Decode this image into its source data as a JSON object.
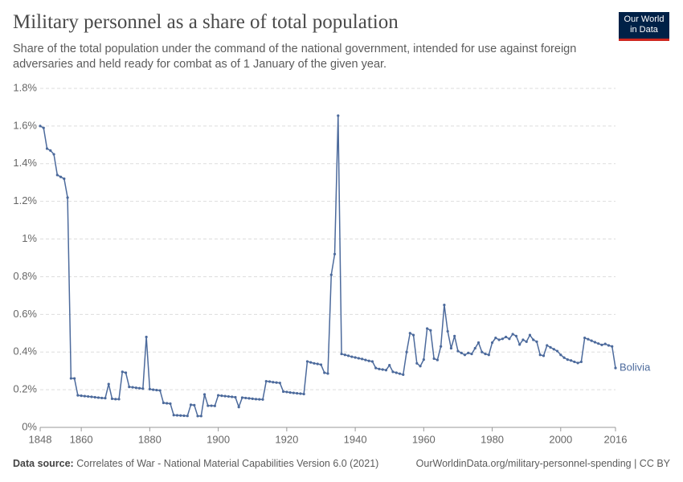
{
  "chart_data": {
    "type": "line",
    "title": "Military personnel as a share of total population",
    "subtitle": "Share of the total population under the command of the national government, intended for use against foreign adversaries and held ready for combat as of 1 January of the given year.",
    "logo": [
      "Our World",
      "in Data"
    ],
    "source_label": "Data source:",
    "source": "Correlates of War - National Material Capabilities Version 6.0 (2021)",
    "url": "OurWorldinData.org/military-personnel-spending | CC BY",
    "x": [
      1848,
      1849,
      1850,
      1851,
      1852,
      1853,
      1854,
      1855,
      1856,
      1857,
      1858,
      1859,
      1860,
      1861,
      1862,
      1863,
      1864,
      1865,
      1866,
      1867,
      1868,
      1869,
      1870,
      1871,
      1872,
      1873,
      1874,
      1875,
      1876,
      1877,
      1878,
      1879,
      1880,
      1881,
      1882,
      1883,
      1884,
      1885,
      1886,
      1887,
      1888,
      1889,
      1890,
      1891,
      1892,
      1893,
      1894,
      1895,
      1896,
      1897,
      1898,
      1899,
      1900,
      1901,
      1902,
      1903,
      1904,
      1905,
      1906,
      1907,
      1908,
      1909,
      1910,
      1911,
      1912,
      1913,
      1914,
      1915,
      1916,
      1917,
      1918,
      1919,
      1920,
      1921,
      1922,
      1923,
      1924,
      1925,
      1926,
      1927,
      1928,
      1929,
      1930,
      1931,
      1932,
      1933,
      1934,
      1935,
      1936,
      1937,
      1938,
      1939,
      1940,
      1941,
      1942,
      1943,
      1944,
      1945,
      1946,
      1947,
      1948,
      1949,
      1950,
      1951,
      1952,
      1953,
      1954,
      1955,
      1956,
      1957,
      1958,
      1959,
      1960,
      1961,
      1962,
      1963,
      1964,
      1965,
      1966,
      1967,
      1968,
      1969,
      1970,
      1971,
      1972,
      1973,
      1974,
      1975,
      1976,
      1977,
      1978,
      1979,
      1980,
      1981,
      1982,
      1983,
      1984,
      1985,
      1986,
      1987,
      1988,
      1989,
      1990,
      1991,
      1992,
      1993,
      1994,
      1995,
      1996,
      1997,
      1998,
      1999,
      2000,
      2001,
      2002,
      2003,
      2004,
      2005,
      2006,
      2007,
      2008,
      2009,
      2010,
      2011,
      2012,
      2013,
      2014,
      2015,
      2016
    ],
    "series": [
      {
        "name": "Bolivia",
        "color": "#4c6a9c",
        "values": [
          1.6,
          1.59,
          1.48,
          1.47,
          1.45,
          1.34,
          1.33,
          1.32,
          1.22,
          0.26,
          0.26,
          0.17,
          0.168,
          0.166,
          0.164,
          0.162,
          0.16,
          0.158,
          0.156,
          0.155,
          0.23,
          0.152,
          0.15,
          0.15,
          0.295,
          0.29,
          0.215,
          0.213,
          0.21,
          0.208,
          0.206,
          0.48,
          0.203,
          0.2,
          0.198,
          0.196,
          0.13,
          0.128,
          0.126,
          0.065,
          0.064,
          0.063,
          0.062,
          0.061,
          0.12,
          0.118,
          0.06,
          0.06,
          0.175,
          0.115,
          0.115,
          0.114,
          0.17,
          0.168,
          0.166,
          0.164,
          0.162,
          0.16,
          0.108,
          0.158,
          0.156,
          0.154,
          0.152,
          0.15,
          0.149,
          0.148,
          0.245,
          0.243,
          0.24,
          0.238,
          0.236,
          0.19,
          0.188,
          0.185,
          0.183,
          0.181,
          0.179,
          0.177,
          0.35,
          0.345,
          0.34,
          0.337,
          0.333,
          0.29,
          0.286,
          0.81,
          0.92,
          1.655,
          0.39,
          0.385,
          0.38,
          0.375,
          0.371,
          0.367,
          0.363,
          0.358,
          0.353,
          0.35,
          0.315,
          0.31,
          0.307,
          0.304,
          0.33,
          0.295,
          0.29,
          0.285,
          0.28,
          0.4,
          0.5,
          0.49,
          0.34,
          0.325,
          0.36,
          0.525,
          0.515,
          0.365,
          0.358,
          0.43,
          0.65,
          0.51,
          0.42,
          0.485,
          0.405,
          0.395,
          0.385,
          0.395,
          0.39,
          0.42,
          0.45,
          0.4,
          0.39,
          0.385,
          0.45,
          0.475,
          0.465,
          0.47,
          0.48,
          0.47,
          0.495,
          0.485,
          0.44,
          0.465,
          0.455,
          0.49,
          0.465,
          0.455,
          0.385,
          0.38,
          0.435,
          0.425,
          0.415,
          0.405,
          0.385,
          0.37,
          0.36,
          0.355,
          0.348,
          0.342,
          0.348,
          0.475,
          0.468,
          0.46,
          0.452,
          0.445,
          0.438,
          0.443,
          0.435,
          0.43,
          0.315
        ]
      }
    ],
    "xlim": [
      1848,
      2016
    ],
    "xticks": [
      1848,
      1860,
      1880,
      1900,
      1920,
      1940,
      1960,
      1980,
      2000,
      2016
    ],
    "ylim": [
      0,
      1.8
    ],
    "yticks": [
      {
        "value": 0,
        "label": "0%"
      },
      {
        "value": 0.2,
        "label": "0.2%"
      },
      {
        "value": 0.4,
        "label": "0.4%"
      },
      {
        "value": 0.6,
        "label": "0.6%"
      },
      {
        "value": 0.8,
        "label": "0.8%"
      },
      {
        "value": 1,
        "label": "1%"
      },
      {
        "value": 1.2,
        "label": "1.2%"
      },
      {
        "value": 1.4,
        "label": "1.4%"
      },
      {
        "value": 1.6,
        "label": "1.6%"
      },
      {
        "value": 1.8,
        "label": "1.8%"
      }
    ],
    "grid": true
  }
}
